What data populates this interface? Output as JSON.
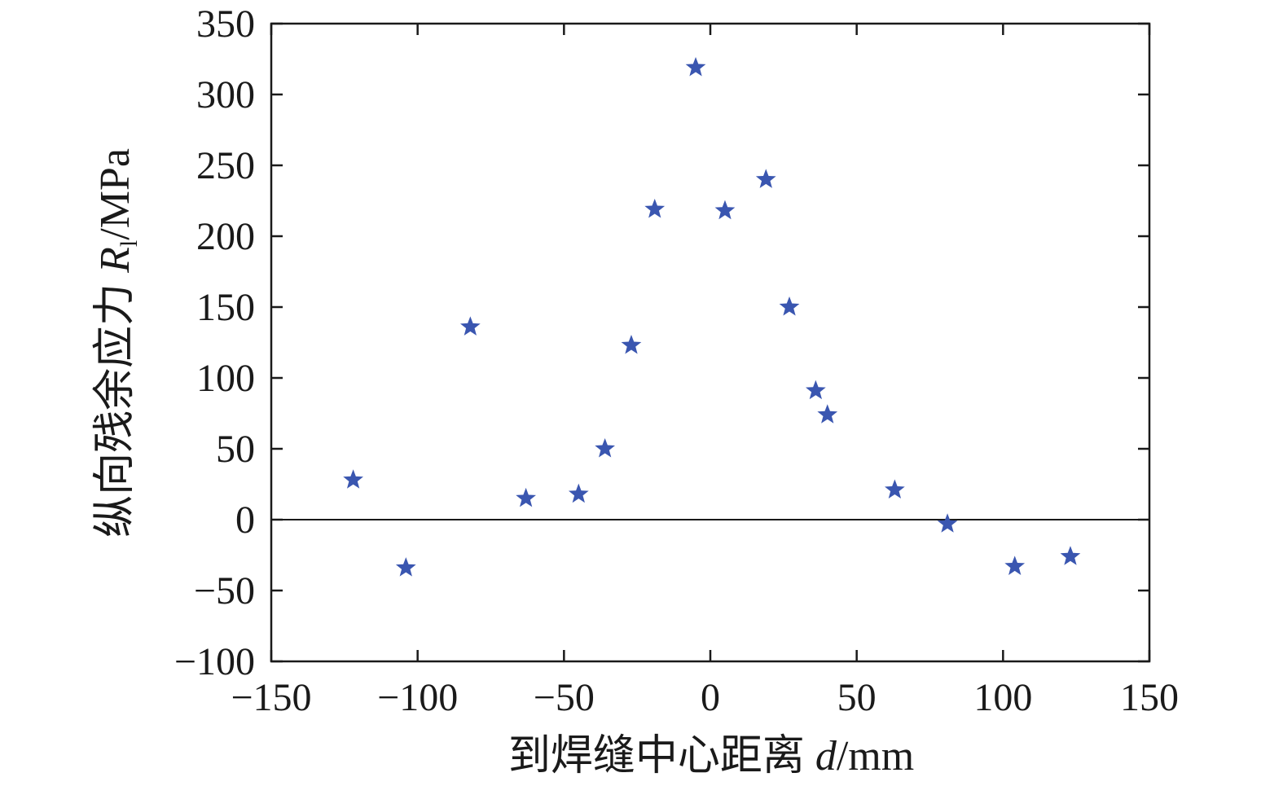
{
  "chart_data": {
    "type": "scatter",
    "xlabel_prefix": "到焊缝中心距离 ",
    "xlabel_var": "d",
    "xlabel_unit": "/mm",
    "ylabel_prefix": "纵向残余应力 ",
    "ylabel_var": "R",
    "ylabel_sub": "l",
    "ylabel_unit": "/MPa",
    "xlim": [
      -150,
      150
    ],
    "ylim": [
      -100,
      350
    ],
    "xticks": [
      -150,
      -100,
      -50,
      0,
      50,
      100,
      150
    ],
    "xtick_labels": [
      "−150",
      "−100",
      "−50",
      "0",
      "50",
      "100",
      "150"
    ],
    "yticks": [
      -100,
      -50,
      0,
      50,
      100,
      150,
      200,
      250,
      300,
      350
    ],
    "ytick_labels": [
      "−100",
      "−50",
      "0",
      "50",
      "100",
      "150",
      "200",
      "250",
      "300",
      "350"
    ],
    "zero_line": true,
    "grid": false,
    "marker": "star",
    "marker_color": "#3a56b0",
    "points": [
      {
        "x": -122,
        "y": 28
      },
      {
        "x": -104,
        "y": -34
      },
      {
        "x": -82,
        "y": 136
      },
      {
        "x": -63,
        "y": 15
      },
      {
        "x": -45,
        "y": 18
      },
      {
        "x": -36,
        "y": 50
      },
      {
        "x": -27,
        "y": 123
      },
      {
        "x": -19,
        "y": 219
      },
      {
        "x": -5,
        "y": 319
      },
      {
        "x": 5,
        "y": 218
      },
      {
        "x": 19,
        "y": 240
      },
      {
        "x": 27,
        "y": 150
      },
      {
        "x": 36,
        "y": 91
      },
      {
        "x": 40,
        "y": 74
      },
      {
        "x": 63,
        "y": 21
      },
      {
        "x": 81,
        "y": -3
      },
      {
        "x": 104,
        "y": -33
      },
      {
        "x": 123,
        "y": -26
      }
    ]
  }
}
